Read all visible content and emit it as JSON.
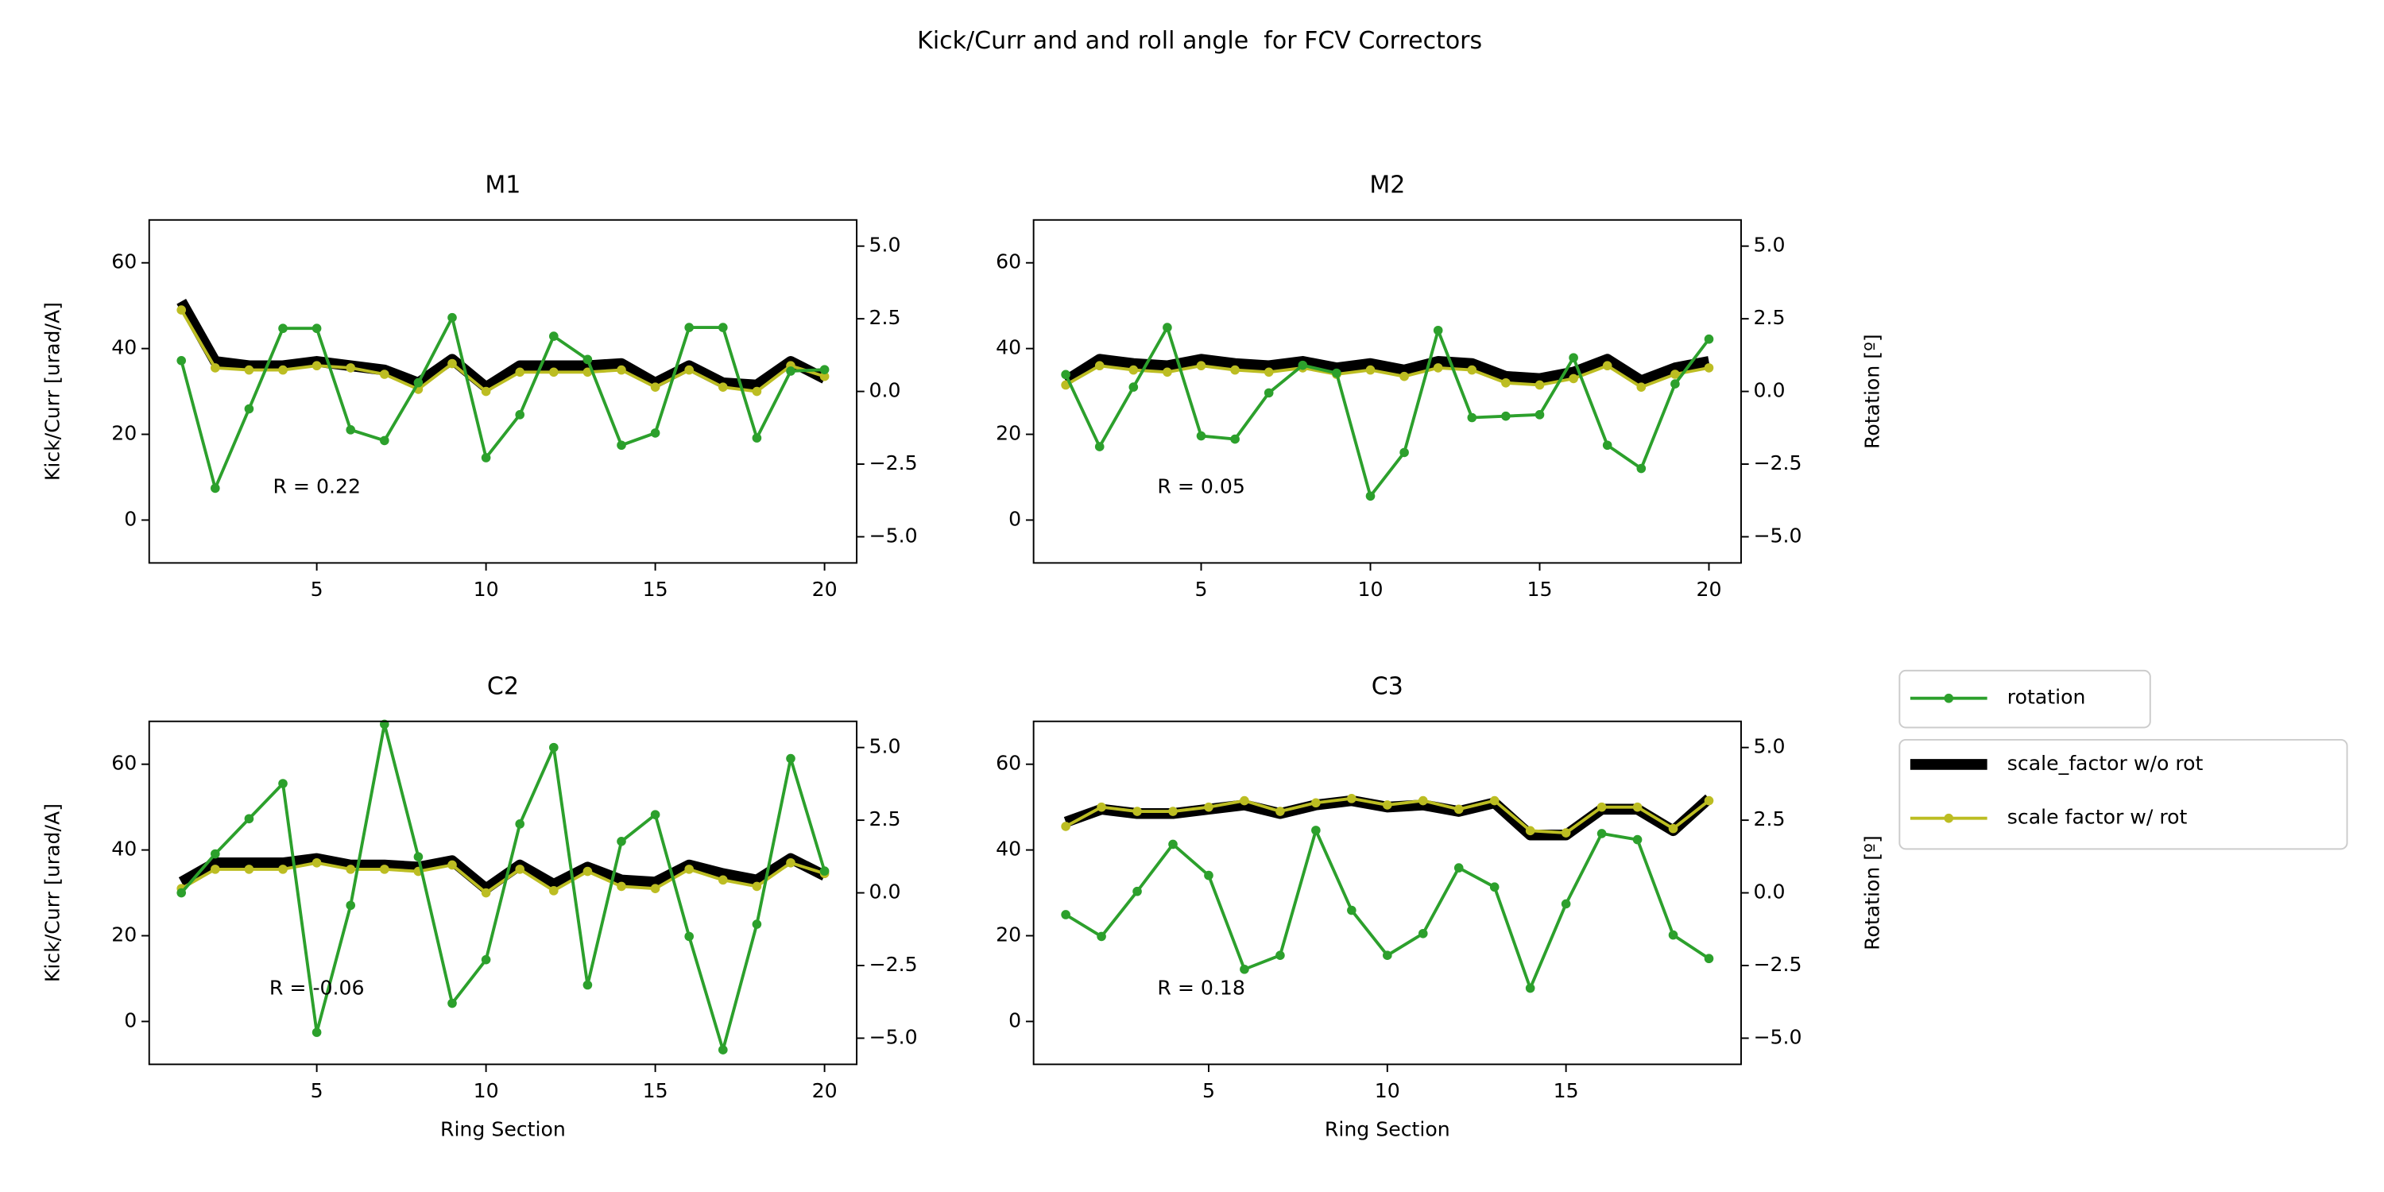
{
  "title": "Kick/Curr and and roll angle  for FCV Correctors",
  "chart_data": [
    {
      "type": "line",
      "title": "M1",
      "ylabel": "Kick/Curr [urad/A]",
      "annotation": "R = 0.22",
      "x": [
        1,
        2,
        3,
        4,
        5,
        6,
        7,
        8,
        9,
        10,
        11,
        12,
        13,
        14,
        15,
        16,
        17,
        18,
        19,
        20
      ],
      "xlim": [
        0.05,
        20.95
      ],
      "xticks": [
        5,
        10,
        15,
        20
      ],
      "ylim": [
        -10,
        70
      ],
      "yticks": [
        0,
        20,
        40,
        60
      ],
      "y2lim": [
        -5.9,
        5.9
      ],
      "y2ticks": [
        {
          "value": -5,
          "label": "−5.0"
        },
        {
          "value": -2.5,
          "label": "−2.5"
        },
        {
          "value": 0,
          "label": "0.0"
        },
        {
          "value": 2.5,
          "label": "2.5"
        },
        {
          "value": 5,
          "label": "5.0"
        }
      ],
      "series": [
        {
          "color": "#2ca02c",
          "axis": "y2",
          "values": [
            1.06,
            -3.33,
            -0.6,
            2.17,
            2.17,
            -1.32,
            -1.69,
            0.3,
            2.54,
            -2.28,
            -0.8,
            1.9,
            1.1,
            -1.85,
            -1.43,
            2.2,
            2.2,
            -1.6,
            0.7,
            0.75
          ]
        },
        {
          "color": "#000000",
          "values": [
            51,
            37,
            36,
            36,
            37,
            36,
            35,
            32,
            37.5,
            31,
            36,
            36,
            36,
            36.5,
            32,
            36,
            32,
            31.5,
            37,
            33
          ]
        },
        {
          "color": "#bcbd22",
          "values": [
            49,
            35.5,
            35,
            35,
            36,
            35.5,
            34,
            30.5,
            36.5,
            30,
            34.5,
            34.5,
            34.5,
            35,
            31,
            35,
            31,
            30,
            36,
            33.5
          ]
        }
      ]
    },
    {
      "type": "line",
      "title": "M2",
      "y2label": "Rotation [º]",
      "annotation": "R = 0.05",
      "x": [
        1,
        2,
        3,
        4,
        5,
        6,
        7,
        8,
        9,
        10,
        11,
        12,
        13,
        14,
        15,
        16,
        17,
        18,
        19,
        20
      ],
      "xlim": [
        0.05,
        20.95
      ],
      "xticks": [
        5,
        10,
        15,
        20
      ],
      "ylim": [
        -10,
        70
      ],
      "yticks": [
        0,
        20,
        40,
        60
      ],
      "y2lim": [
        -5.9,
        5.9
      ],
      "y2ticks": [
        {
          "value": -5,
          "label": "−5.0"
        },
        {
          "value": -2.5,
          "label": "−2.5"
        },
        {
          "value": 0,
          "label": "0.0"
        },
        {
          "value": 2.5,
          "label": "2.5"
        },
        {
          "value": 5,
          "label": "5.0"
        }
      ],
      "series": [
        {
          "color": "#2ca02c",
          "axis": "y2",
          "values": [
            0.58,
            -1.9,
            0.15,
            2.2,
            -1.53,
            -1.64,
            -0.05,
            0.9,
            0.63,
            -3.6,
            -2.1,
            2.1,
            -0.9,
            -0.85,
            -0.8,
            1.16,
            -1.85,
            -2.65,
            0.26,
            1.8
          ]
        },
        {
          "color": "#000000",
          "values": [
            32.5,
            37.5,
            36.5,
            36,
            37.5,
            36.5,
            36,
            37,
            35.5,
            36.5,
            35,
            37,
            36.5,
            33.5,
            33,
            34.5,
            37.5,
            32.5,
            35.5,
            37
          ]
        },
        {
          "color": "#bcbd22",
          "values": [
            31.5,
            36,
            35,
            34.5,
            36,
            35,
            34.5,
            35.5,
            34,
            35,
            33.5,
            35.5,
            35,
            32,
            31.5,
            33,
            36,
            31,
            34,
            35.5
          ]
        }
      ]
    },
    {
      "type": "line",
      "title": "C2",
      "ylabel": "Kick/Curr [urad/A]",
      "xlabel": "Ring Section",
      "annotation": "R = -0.06",
      "x": [
        1,
        2,
        3,
        4,
        5,
        6,
        7,
        8,
        9,
        10,
        11,
        12,
        13,
        14,
        15,
        16,
        17,
        18,
        19,
        20
      ],
      "xlim": [
        0.05,
        20.95
      ],
      "xticks": [
        5,
        10,
        15,
        20
      ],
      "ylim": [
        -10,
        70
      ],
      "yticks": [
        0,
        20,
        40,
        60
      ],
      "y2lim": [
        -5.9,
        5.9
      ],
      "y2ticks": [
        {
          "value": -5,
          "label": "−5.0"
        },
        {
          "value": -2.5,
          "label": "−2.5"
        },
        {
          "value": 0,
          "label": "0.0"
        },
        {
          "value": 2.5,
          "label": "2.5"
        },
        {
          "value": 5,
          "label": "5.0"
        }
      ],
      "series": [
        {
          "color": "#2ca02c",
          "axis": "y2",
          "values": [
            0,
            1.34,
            2.55,
            3.76,
            -4.8,
            -0.43,
            5.8,
            1.24,
            -3.8,
            -2.3,
            2.37,
            5.0,
            -3.17,
            1.77,
            2.69,
            -1.5,
            -5.4,
            -1.08,
            4.62,
            0.75
          ]
        },
        {
          "color": "#000000",
          "values": [
            32.5,
            37,
            37,
            37,
            38,
            36.5,
            36.5,
            36,
            37.5,
            31,
            36.5,
            32,
            36,
            33,
            32.5,
            36.5,
            34.5,
            33,
            38,
            34
          ]
        },
        {
          "color": "#bcbd22",
          "values": [
            31,
            35.5,
            35.5,
            35.5,
            37,
            35.5,
            35.5,
            35,
            36.5,
            30,
            35.5,
            30.5,
            35,
            31.5,
            31,
            35.5,
            33,
            31.5,
            37,
            34.5
          ]
        }
      ]
    },
    {
      "type": "line",
      "title": "C3",
      "xlabel": "Ring Section",
      "y2label": "Rotation [º]",
      "annotation": "R = 0.18",
      "x": [
        1,
        2,
        3,
        4,
        5,
        6,
        7,
        8,
        9,
        10,
        11,
        12,
        13,
        14,
        15,
        16,
        17,
        18,
        19
      ],
      "xlim": [
        0.1,
        19.9
      ],
      "xticks": [
        5,
        10,
        15
      ],
      "ylim": [
        -10,
        70
      ],
      "yticks": [
        0,
        20,
        40,
        60
      ],
      "y2lim": [
        -5.9,
        5.9
      ],
      "y2ticks": [
        {
          "value": -5,
          "label": "−5.0"
        },
        {
          "value": -2.5,
          "label": "−2.5"
        },
        {
          "value": 0,
          "label": "0.0"
        },
        {
          "value": 2.5,
          "label": "2.5"
        },
        {
          "value": 5,
          "label": "5.0"
        }
      ],
      "series": [
        {
          "name": "rotation",
          "color": "#2ca02c",
          "axis": "y2",
          "values": [
            -0.75,
            -1.5,
            0.05,
            1.67,
            0.6,
            -2.63,
            -2.15,
            2.15,
            -0.6,
            -2.15,
            -1.4,
            0.86,
            0.2,
            -3.28,
            -0.38,
            2.04,
            1.83,
            -1.45,
            -2.26
          ]
        },
        {
          "name": "scale_factor w/o rot",
          "color": "#000000",
          "values": [
            46.5,
            49.5,
            48.5,
            48.5,
            49.5,
            50.5,
            48.5,
            50.5,
            51.5,
            50,
            50.5,
            49,
            51,
            43.5,
            43.5,
            49.5,
            49.5,
            44.5,
            52
          ]
        },
        {
          "name": "scale factor w/ rot",
          "color": "#bcbd22",
          "values": [
            45.5,
            50,
            49,
            49,
            50,
            51.5,
            49,
            51,
            52,
            50.5,
            51.5,
            49.5,
            51.5,
            44.5,
            44,
            50,
            50,
            45,
            51.5
          ]
        }
      ]
    }
  ]
}
